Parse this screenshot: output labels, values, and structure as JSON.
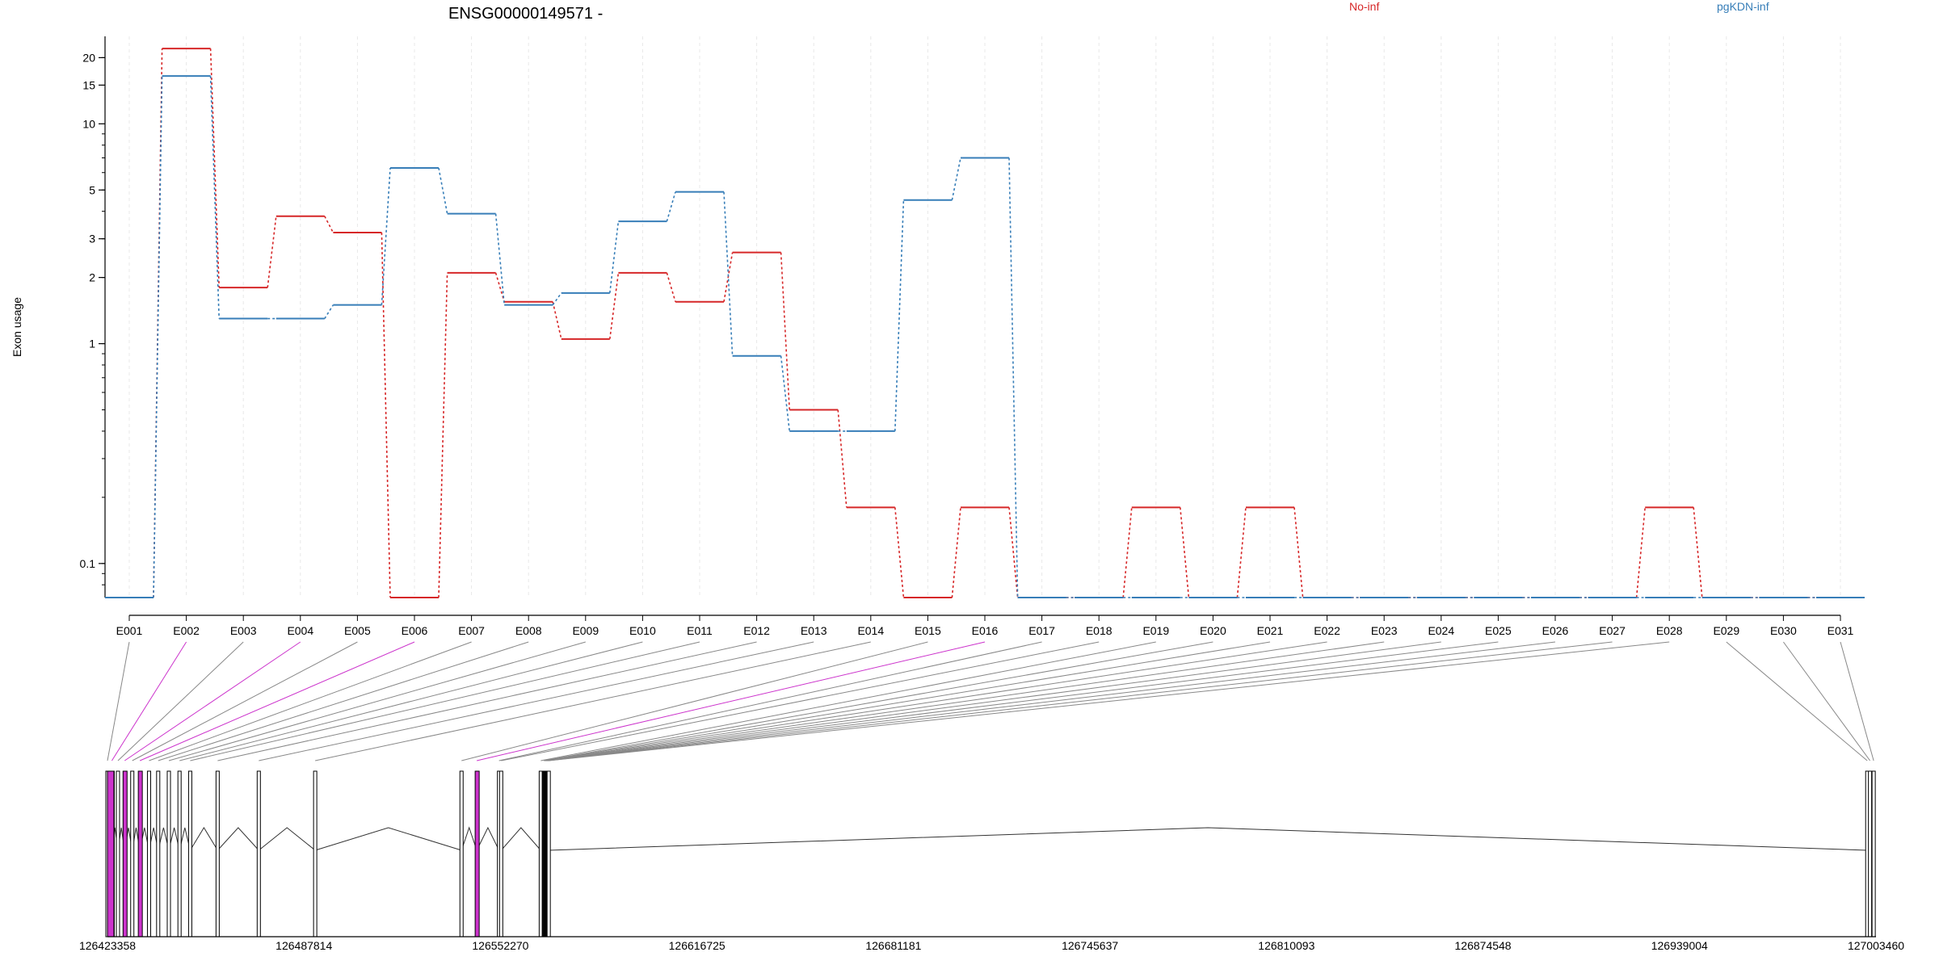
{
  "chart_data": {
    "type": "line",
    "title": "ENSG00000149571 -",
    "ylabel": "Exon usage",
    "xlabel": "",
    "yscale": "log",
    "ylim": [
      0.07,
      25
    ],
    "yticks": [
      0.1,
      1,
      2,
      3,
      5,
      10,
      15,
      20
    ],
    "ytick_labels": [
      "0.1",
      "1",
      "2",
      "3",
      "5",
      "10",
      "15",
      "20"
    ],
    "categories": [
      "E001",
      "E002",
      "E003",
      "E004",
      "E005",
      "E006",
      "E007",
      "E008",
      "E009",
      "E010",
      "E011",
      "E012",
      "E013",
      "E014",
      "E015",
      "E016",
      "E017",
      "E018",
      "E019",
      "E020",
      "E021",
      "E022",
      "E023",
      "E024",
      "E025",
      "E026",
      "E027",
      "E028",
      "E029",
      "E030",
      "E031"
    ],
    "legend_position": "top",
    "series": [
      {
        "name": "No-inf",
        "color": "#D62728",
        "values": [
          0.07,
          22,
          1.8,
          3.8,
          3.2,
          0.07,
          2.1,
          1.55,
          1.05,
          2.1,
          1.55,
          2.6,
          0.5,
          0.18,
          0.07,
          0.18,
          0.07,
          0.07,
          0.18,
          0.07,
          0.18,
          0.07,
          0.07,
          0.07,
          0.07,
          0.07,
          0.07,
          0.18,
          0.07,
          0.07,
          0.07
        ]
      },
      {
        "name": "pgKDN-inf",
        "color": "#377EB8",
        "values": [
          0.07,
          16.5,
          1.3,
          1.3,
          1.5,
          6.3,
          3.9,
          1.5,
          1.7,
          3.6,
          4.9,
          0.88,
          0.4,
          0.4,
          4.5,
          7.0,
          0.07,
          0.07,
          0.07,
          0.07,
          0.07,
          0.07,
          0.07,
          0.07,
          0.07,
          0.07,
          0.07,
          0.07,
          0.07,
          0.07,
          0.07
        ]
      }
    ],
    "genomic_axis": {
      "tick_labels": [
        "126423358",
        "126487814",
        "126552270",
        "126616725",
        "126681181",
        "126745637",
        "126810093",
        "126874548",
        "126939004",
        "127003460"
      ],
      "range": [
        126423358,
        127003460
      ]
    },
    "exon_coordinates": [
      126423358,
      126424800,
      126426800,
      126429000,
      126431500,
      126434000,
      126437000,
      126440000,
      126443500,
      126447000,
      126450500,
      126459500,
      126473000,
      126491500,
      126539500,
      126544500,
      126551800,
      126552500,
      126565500,
      126566500,
      126566700,
      126566900,
      126567100,
      126567300,
      126567500,
      126567700,
      126567900,
      126568100,
      127000600,
      127001500,
      127002700
    ],
    "highlighted_exons": [
      "E002",
      "E004",
      "E006",
      "E016"
    ],
    "highlight_color": "#CC33CC"
  }
}
